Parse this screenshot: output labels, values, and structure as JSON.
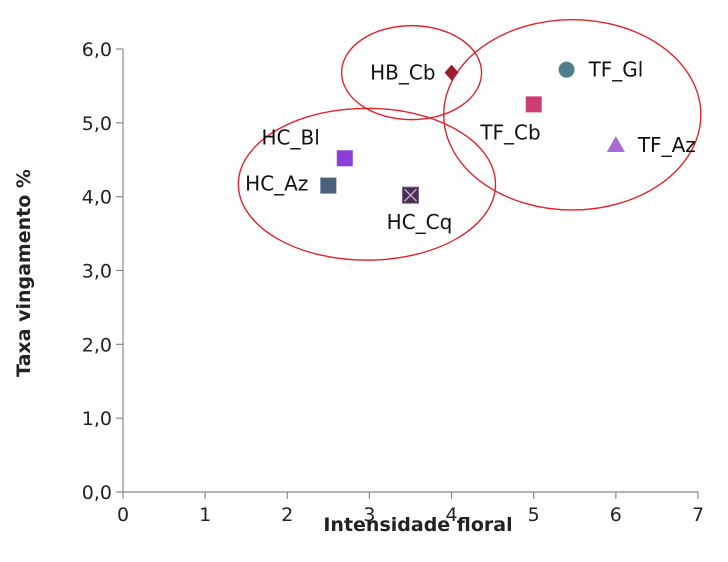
{
  "chart_data": {
    "type": "scatter",
    "xlabel": "Intensidade floral",
    "ylabel": "Taxa vingamento %",
    "xlim": [
      0,
      7
    ],
    "ylim": [
      0,
      6
    ],
    "x_ticks": [
      "0",
      "1",
      "2",
      "3",
      "4",
      "5",
      "6",
      "7"
    ],
    "y_ticks": [
      "0,0",
      "1,0",
      "2,0",
      "3,0",
      "4,0",
      "5,0",
      "6,0"
    ],
    "grid": false,
    "legend": "none",
    "points": [
      {
        "label": "HB_Cb",
        "x": 4.0,
        "y": 5.68,
        "marker": "diamond",
        "color": "#9b1b30"
      },
      {
        "label": "TF_Gl",
        "x": 5.4,
        "y": 5.72,
        "marker": "circle",
        "color": "#4f7f8c"
      },
      {
        "label": "TF_Cb",
        "x": 5.0,
        "y": 5.25,
        "marker": "square",
        "color": "#cc3d6f"
      },
      {
        "label": "TF_Az",
        "x": 6.0,
        "y": 4.7,
        "marker": "triangle",
        "color": "#a76bd9"
      },
      {
        "label": "HC_Bl",
        "x": 2.7,
        "y": 4.52,
        "marker": "square",
        "color": "#8b3fd8"
      },
      {
        "label": "HC_Az",
        "x": 2.5,
        "y": 4.15,
        "marker": "square",
        "color": "#4a637c"
      },
      {
        "label": "HC_Cq",
        "x": 3.5,
        "y": 4.02,
        "marker": "square-x",
        "color": "#4b2d55"
      }
    ],
    "groups": [
      {
        "members": [
          "HB_Cb"
        ]
      },
      {
        "members": [
          "TF_Gl",
          "TF_Cb",
          "TF_Az"
        ]
      },
      {
        "members": [
          "HC_Bl",
          "HC_Az",
          "HC_Cq"
        ]
      }
    ],
    "group_outline_color": "#e0242b"
  }
}
